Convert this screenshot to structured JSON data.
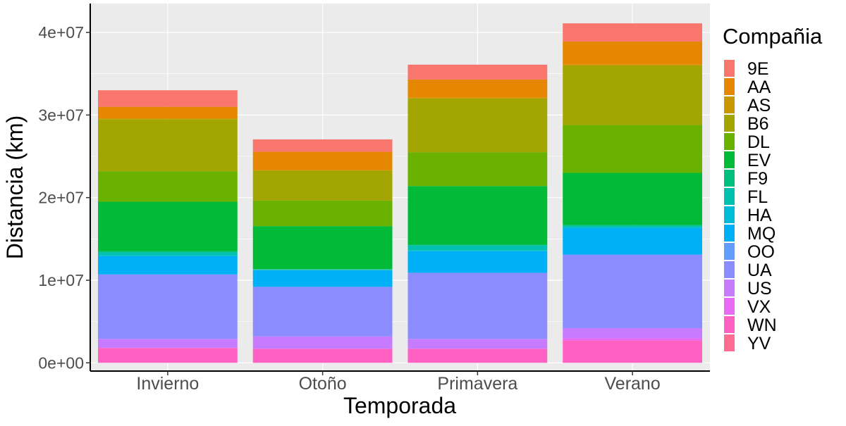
{
  "chart_data": {
    "type": "bar",
    "stacked": true,
    "xlabel": "Temporada",
    "ylabel": "Distancia (km)",
    "categories": [
      "Invierno",
      "Otoño",
      "Primavera",
      "Verano"
    ],
    "ylim": [
      -1000000,
      43500000
    ],
    "yticks": [
      0,
      10000000,
      20000000,
      30000000,
      40000000
    ],
    "ytick_labels": [
      "0e+00",
      "1e+07",
      "2e+07",
      "3e+07",
      "4e+07"
    ],
    "legend_title": "Compañia",
    "legend_position": "right",
    "grid": true,
    "series": [
      {
        "name": "9E",
        "color": "#F8766D",
        "values": [
          2000000,
          1500000,
          1800000,
          2200000
        ]
      },
      {
        "name": "AA",
        "color": "#E58700",
        "values": [
          1400000,
          2200000,
          2200000,
          2800000
        ]
      },
      {
        "name": "AS",
        "color": "#C99800",
        "values": [
          100000,
          100000,
          100000,
          100000
        ]
      },
      {
        "name": "B6",
        "color": "#A3A500",
        "values": [
          6300000,
          3600000,
          6500000,
          7200000
        ]
      },
      {
        "name": "DL",
        "color": "#6BB100",
        "values": [
          3700000,
          3100000,
          4100000,
          5800000
        ]
      },
      {
        "name": "EV",
        "color": "#00BA38",
        "values": [
          6000000,
          5200000,
          7100000,
          6300000
        ]
      },
      {
        "name": "F9",
        "color": "#00BF7D",
        "values": [
          100000,
          50000,
          100000,
          100000
        ]
      },
      {
        "name": "FL",
        "color": "#00C0AF",
        "values": [
          400000,
          50000,
          600000,
          200000
        ]
      },
      {
        "name": "HA",
        "color": "#00BCD8",
        "values": [
          100000,
          50000,
          100000,
          100000
        ]
      },
      {
        "name": "MQ",
        "color": "#00B0F6",
        "values": [
          2200000,
          2000000,
          2600000,
          3200000
        ]
      },
      {
        "name": "OO",
        "color": "#619CFF",
        "values": [
          0,
          0,
          0,
          0
        ]
      },
      {
        "name": "UA",
        "color": "#8A8CFF",
        "values": [
          7800000,
          6000000,
          8000000,
          8900000
        ]
      },
      {
        "name": "US",
        "color": "#C77CFF",
        "values": [
          1100000,
          1500000,
          1200000,
          1200000
        ]
      },
      {
        "name": "VX",
        "color": "#E76BF3",
        "values": [
          0,
          0,
          0,
          300000
        ]
      },
      {
        "name": "WN",
        "color": "#FF61C3",
        "values": [
          1800000,
          1700000,
          1700000,
          2700000
        ]
      },
      {
        "name": "YV",
        "color": "#FF6C91",
        "values": [
          0,
          0,
          0,
          0
        ]
      }
    ]
  }
}
